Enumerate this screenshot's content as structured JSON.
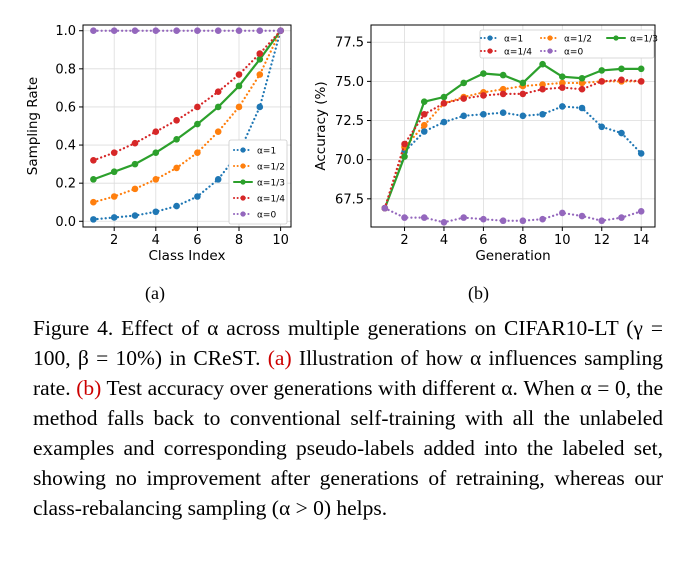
{
  "chart_data": [
    {
      "type": "line",
      "xlabel": "Class Index",
      "ylabel": "Sampling Rate",
      "xlim": [
        0.5,
        10.5
      ],
      "ylim": [
        -0.03,
        1.03
      ],
      "xticks": [
        2,
        4,
        6,
        8,
        10
      ],
      "yticks": [
        0.0,
        0.2,
        0.4,
        0.6,
        0.8,
        1.0
      ],
      "ytick_labels": [
        "0.0",
        "0.2",
        "0.4",
        "0.6",
        "0.8",
        "1.0"
      ],
      "grid": true,
      "legend_position": "lower-right",
      "x": [
        1,
        2,
        3,
        4,
        5,
        6,
        7,
        8,
        9,
        10
      ],
      "series": [
        {
          "name": "α=1",
          "color": "#1f77b4",
          "style": "dotted",
          "values": [
            0.01,
            0.02,
            0.03,
            0.05,
            0.08,
            0.13,
            0.22,
            0.36,
            0.6,
            1.0
          ]
        },
        {
          "name": "α=1/2",
          "color": "#ff7f0e",
          "style": "dotted",
          "values": [
            0.1,
            0.13,
            0.17,
            0.22,
            0.28,
            0.36,
            0.47,
            0.6,
            0.77,
            1.0
          ]
        },
        {
          "name": "α=1/3",
          "color": "#2ca02c",
          "style": "solid",
          "values": [
            0.22,
            0.26,
            0.3,
            0.36,
            0.43,
            0.51,
            0.6,
            0.71,
            0.85,
            1.0
          ]
        },
        {
          "name": "α=1/4",
          "color": "#d62728",
          "style": "dotted",
          "values": [
            0.32,
            0.36,
            0.41,
            0.47,
            0.53,
            0.6,
            0.68,
            0.77,
            0.88,
            1.0
          ]
        },
        {
          "name": "α=0",
          "color": "#9467bd",
          "style": "dotted",
          "values": [
            1.0,
            1.0,
            1.0,
            1.0,
            1.0,
            1.0,
            1.0,
            1.0,
            1.0,
            1.0
          ]
        }
      ]
    },
    {
      "type": "line",
      "xlabel": "Generation",
      "ylabel": "Accuracy (%)",
      "xlim": [
        0.3,
        14.7
      ],
      "ylim": [
        65.7,
        78.6
      ],
      "xticks": [
        2,
        4,
        6,
        8,
        10,
        12,
        14
      ],
      "yticks": [
        67.5,
        70.0,
        72.5,
        75.0,
        77.5
      ],
      "ytick_labels": [
        "67.5",
        "70.0",
        "72.5",
        "75.0",
        "77.5"
      ],
      "grid": true,
      "legend_position": "top",
      "x": [
        1,
        2,
        3,
        4,
        5,
        6,
        7,
        8,
        9,
        10,
        11,
        12,
        13,
        14
      ],
      "series": [
        {
          "name": "α=1",
          "color": "#1f77b4",
          "style": "dotted",
          "values": [
            66.9,
            70.5,
            71.8,
            72.4,
            72.8,
            72.9,
            73.0,
            72.8,
            72.9,
            73.4,
            73.3,
            72.1,
            71.7,
            70.4
          ]
        },
        {
          "name": "α=1/2",
          "color": "#ff7f0e",
          "style": "dotted",
          "values": [
            66.9,
            70.8,
            72.2,
            73.6,
            74.0,
            74.3,
            74.5,
            74.7,
            74.8,
            74.9,
            74.9,
            75.0,
            75.0,
            75.0
          ]
        },
        {
          "name": "α=1/3",
          "color": "#2ca02c",
          "style": "solid",
          "values": [
            66.9,
            70.2,
            73.7,
            74.0,
            74.9,
            75.5,
            75.4,
            74.9,
            76.1,
            75.3,
            75.2,
            75.7,
            75.8,
            75.8
          ]
        },
        {
          "name": "α=1/4",
          "color": "#d62728",
          "style": "dotted",
          "values": [
            66.9,
            71.0,
            72.9,
            73.6,
            73.9,
            74.1,
            74.2,
            74.2,
            74.5,
            74.6,
            74.5,
            75.0,
            75.1,
            75.0
          ]
        },
        {
          "name": "α=0",
          "color": "#9467bd",
          "style": "dotted",
          "values": [
            66.9,
            66.3,
            66.3,
            66.0,
            66.3,
            66.2,
            66.1,
            66.1,
            66.2,
            66.6,
            66.4,
            66.1,
            66.3,
            66.7
          ]
        }
      ]
    }
  ],
  "subcaptions": {
    "a": "(a)",
    "b": "(b)"
  },
  "caption": {
    "lead": "Figure 4. Effect of α across multiple generations on CIFAR10-LT (γ = 100, β = 10%) in CReST.",
    "ref_a": "(a)",
    "text_a": "Illustration of how α influences sampling rate.",
    "ref_b": "(b)",
    "text_b": "Test accuracy over generations with different α. When α = 0, the method falls back to conventional self-training with all the unlabeled examples and corresponding pseudo-labels added into the labeled set, showing no improvement after generations of retraining, whereas our class-rebalancing sampling (α > 0) helps."
  }
}
